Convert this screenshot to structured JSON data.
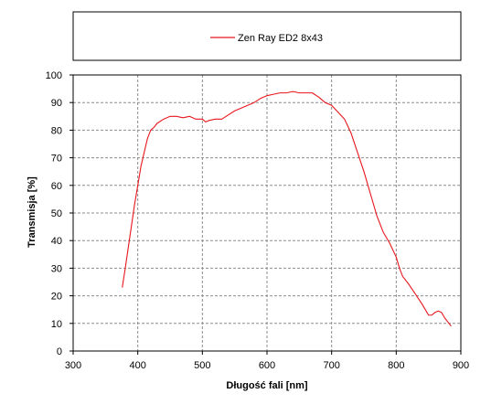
{
  "chart_data": {
    "type": "line",
    "xlabel": "Długość fali [nm]",
    "ylabel": "Transmisja [%]",
    "xlim": [
      300,
      900
    ],
    "ylim": [
      0,
      100
    ],
    "xticks": [
      300,
      400,
      500,
      600,
      700,
      800,
      900
    ],
    "yticks": [
      0,
      10,
      20,
      30,
      40,
      50,
      60,
      70,
      80,
      90,
      100
    ],
    "grid": true,
    "legend_position": "top",
    "series": [
      {
        "name": "Zen Ray ED2 8x43",
        "color": "#e8161d",
        "x": [
          376,
          380,
          385,
          390,
          395,
          400,
          405,
          410,
          415,
          420,
          425,
          430,
          440,
          450,
          460,
          470,
          480,
          490,
          500,
          505,
          510,
          520,
          530,
          540,
          550,
          560,
          570,
          580,
          590,
          600,
          610,
          620,
          630,
          640,
          650,
          660,
          670,
          680,
          690,
          700,
          710,
          720,
          730,
          740,
          750,
          760,
          770,
          780,
          790,
          800,
          805,
          810,
          820,
          830,
          840,
          845,
          850,
          855,
          860,
          865,
          870,
          875,
          880,
          885
        ],
        "y": [
          23,
          29,
          37,
          45,
          53,
          60,
          67,
          72,
          77,
          80,
          81,
          82.5,
          84,
          85,
          85,
          84.5,
          85,
          84,
          84,
          83,
          83.5,
          84,
          84,
          85.5,
          87,
          88,
          89,
          90,
          91.5,
          92.5,
          93,
          93.5,
          93.5,
          94,
          93.5,
          93.5,
          93.5,
          92,
          90,
          89,
          86.5,
          84,
          79,
          72,
          65,
          57,
          49,
          43,
          39,
          34,
          30,
          27,
          24,
          20.5,
          17,
          15,
          13,
          13,
          14,
          14.5,
          14,
          12,
          10.5,
          9
        ]
      }
    ]
  }
}
